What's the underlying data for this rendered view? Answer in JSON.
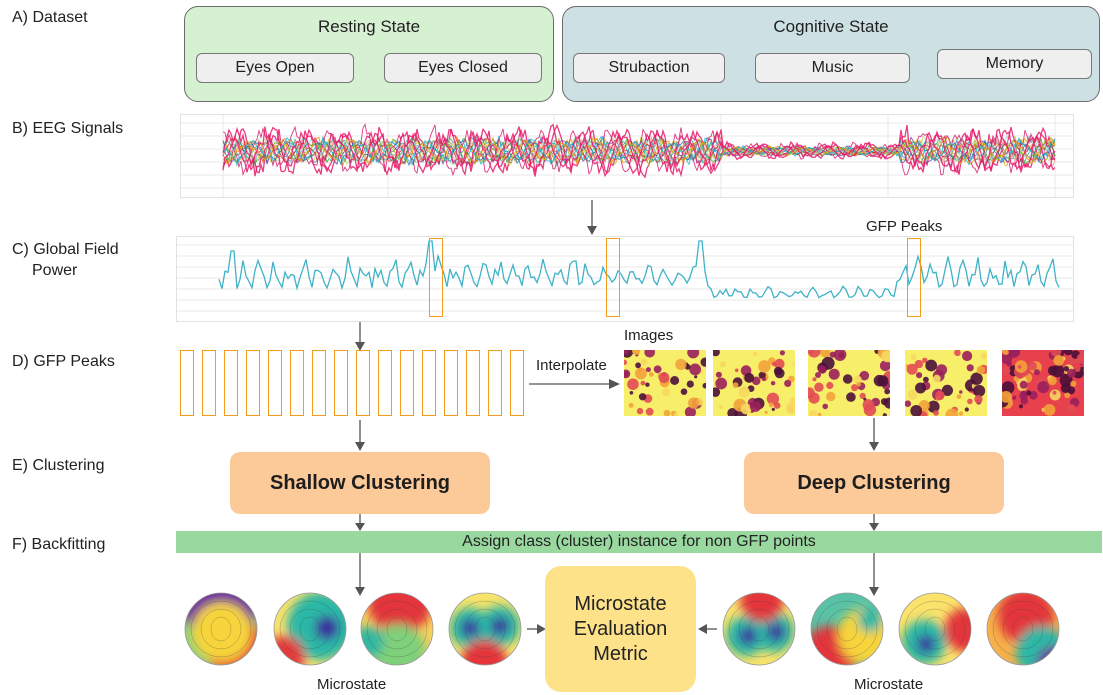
{
  "rows": {
    "a": "A) Dataset",
    "b": "B) EEG Signals",
    "c_line1": "C) Global Field",
    "c_line2": "Power",
    "d": "D) GFP Peaks",
    "e": "E) Clustering",
    "f": "F) Backfitting"
  },
  "dataset": {
    "resting": {
      "title": "Resting State",
      "items": [
        "Eyes Open",
        "Eyes Closed"
      ]
    },
    "cognitive": {
      "title": "Cognitive State",
      "items": [
        "Strubaction",
        "Music",
        "Memory"
      ]
    }
  },
  "labels": {
    "gfp_peaks": "GFP Peaks",
    "images": "Images",
    "interpolate": "Interpolate",
    "microstate_left": "Microstate",
    "microstate_right": "Microstate"
  },
  "clustering": {
    "shallow": "Shallow Clustering",
    "deep": "Deep Clustering"
  },
  "backfitting": {
    "bar": "Assign class (cluster) instance for non GFP points"
  },
  "metric": {
    "line1": "Microstate",
    "line2": "Evaluation",
    "line3": "Metric"
  },
  "colors": {
    "resting_bg": "#d6f0d2",
    "cognitive_bg": "#cde1e4",
    "gfp_line": "#3fb2c8",
    "peak_orange": "#f39b1d",
    "cluster_bg": "#fcc999",
    "backfit_bg": "#99d9a0",
    "metric_bg": "#fde28a"
  }
}
